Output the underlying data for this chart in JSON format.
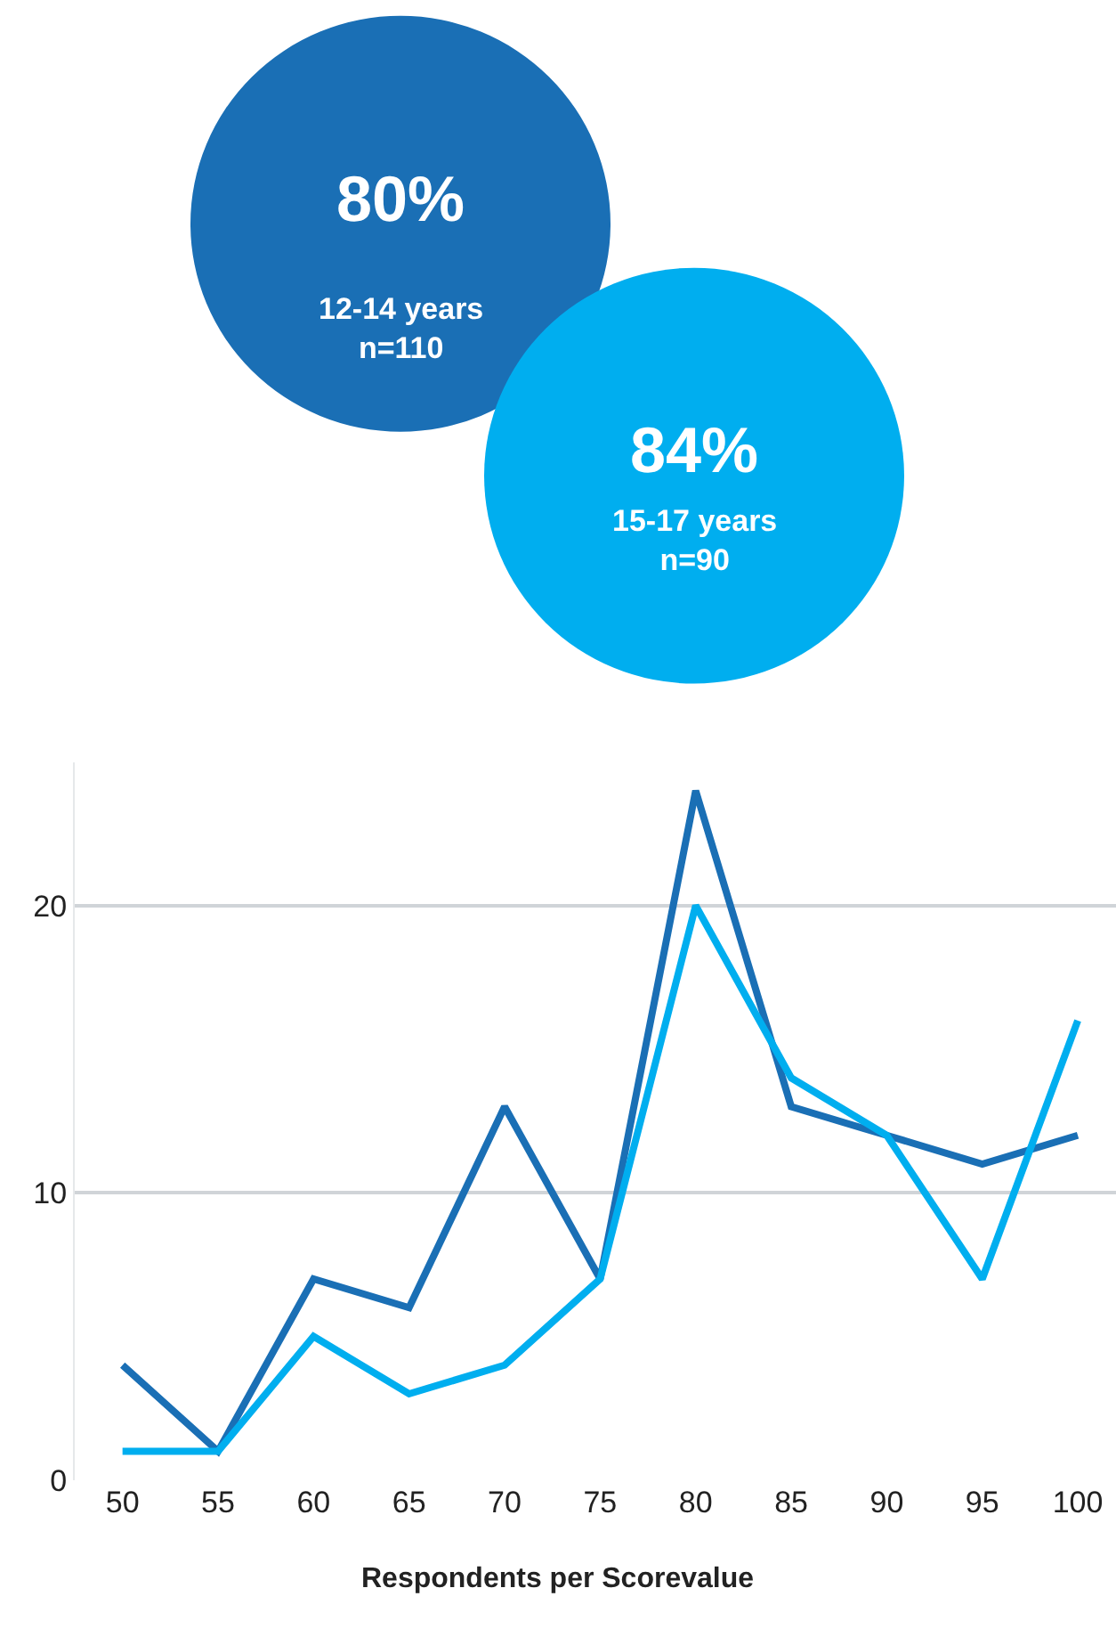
{
  "chart_data": {
    "type": "line",
    "xlabel": "Respondents per Scorevalue",
    "x": [
      50,
      55,
      60,
      65,
      70,
      75,
      80,
      85,
      90,
      95,
      100
    ],
    "series": [
      {
        "color": "#1a6fb5",
        "values": [
          4,
          1,
          7,
          6,
          13,
          7,
          24,
          13,
          12,
          11,
          12
        ]
      },
      {
        "color": "#00aeef",
        "values": [
          1,
          1,
          5,
          3,
          4,
          7,
          20,
          14,
          12,
          7,
          16
        ]
      }
    ],
    "annotations": [
      "80%",
      "12-14 years\nn=110",
      "84%",
      "15-17 years\nn=90"
    ],
    "xlim": [
      47.5,
      102
    ],
    "ylim": [
      0,
      25
    ],
    "xticks": [
      50,
      55,
      60,
      65,
      70,
      75,
      80,
      85,
      90,
      95,
      100
    ],
    "yticks": [
      0,
      10,
      20
    ],
    "grid": "y",
    "legend": false,
    "marker": "none",
    "line_style": "solid"
  }
}
